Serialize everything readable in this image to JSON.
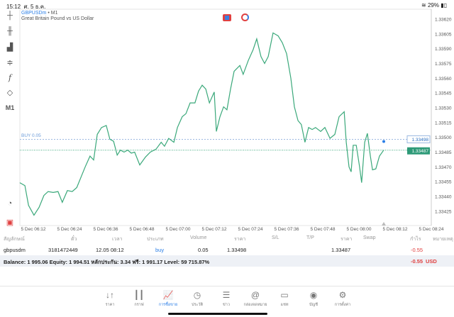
{
  "status": {
    "time": "15:12",
    "date": "ศ. 5 ธ.ค.",
    "battery": "29%"
  },
  "chart": {
    "symbol": "GBPUSDm",
    "timeframe": "M1",
    "separator": "•",
    "description": "Great Britain Pound vs US Dollar",
    "trade_label": "BUY 0.05",
    "ask_price": "1.33498",
    "bid_price": "1.33487",
    "line_color": "#3aa87a",
    "ask_color": "#2a7ee6"
  },
  "toolbar": {
    "timeframe_label": "M1"
  },
  "chart_data": {
    "type": "line",
    "title": "GBPUSDm • M1",
    "xlabel": "",
    "ylabel": "",
    "x_unit": "minutes since 5 Dec 06:12",
    "ylim": [
      1.33415,
      1.3363
    ],
    "y_ticks": [
      "1.33620",
      "1.33605",
      "1.33590",
      "1.33575",
      "1.33560",
      "1.33545",
      "1.33530",
      "1.33515",
      "1.33500",
      "1.33485",
      "1.33470",
      "1.33455",
      "1.33440",
      "1.33425"
    ],
    "x_ticks": [
      "5 Dec 06:12",
      "5 Dec 06:24",
      "5 Dec 06:36",
      "5 Dec 06:48",
      "5 Dec 07:00",
      "5 Dec 07:12",
      "5 Dec 07:24",
      "5 Dec 07:36",
      "5 Dec 07:48",
      "5 Dec 08:00",
      "5 Dec 08:12",
      "5 Dec 08:24"
    ],
    "series": [
      {
        "name": "Bid",
        "points": [
          [
            -4.5,
            1.33454
          ],
          [
            -2.8,
            1.33451
          ],
          [
            -1.6,
            1.33431
          ],
          [
            0.2,
            1.33421
          ],
          [
            1.9,
            1.33429
          ],
          [
            3.5,
            1.33441
          ],
          [
            4.9,
            1.33445
          ],
          [
            6.6,
            1.33444
          ],
          [
            8.2,
            1.33445
          ],
          [
            9.6,
            1.33434
          ],
          [
            11.3,
            1.33446
          ],
          [
            12.9,
            1.33445
          ],
          [
            14.4,
            1.33449
          ],
          [
            16,
            1.33461
          ],
          [
            17.2,
            1.3347
          ],
          [
            18.8,
            1.33481
          ],
          [
            20,
            1.33477
          ],
          [
            21.2,
            1.33503
          ],
          [
            22.6,
            1.3351
          ],
          [
            24.2,
            1.33512
          ],
          [
            25.4,
            1.33498
          ],
          [
            26.6,
            1.33496
          ],
          [
            27.8,
            1.33482
          ],
          [
            28.9,
            1.33487
          ],
          [
            30.1,
            1.33485
          ],
          [
            31.3,
            1.33487
          ],
          [
            32.5,
            1.33484
          ],
          [
            33.6,
            1.33485
          ],
          [
            35.3,
            1.33472
          ],
          [
            37.2,
            1.3348
          ],
          [
            38.8,
            1.33485
          ],
          [
            40.7,
            1.33488
          ],
          [
            42.4,
            1.33495
          ],
          [
            43.5,
            1.33491
          ],
          [
            44.9,
            1.33499
          ],
          [
            46.6,
            1.33495
          ],
          [
            47.8,
            1.3351
          ],
          [
            49.4,
            1.33521
          ],
          [
            50.6,
            1.33524
          ],
          [
            52,
            1.33535
          ],
          [
            53.6,
            1.33535
          ],
          [
            54.8,
            1.33547
          ],
          [
            56,
            1.33553
          ],
          [
            57.2,
            1.33549
          ],
          [
            58.4,
            1.33535
          ],
          [
            60,
            1.33546
          ],
          [
            60.7,
            1.33506
          ],
          [
            61.9,
            1.33521
          ],
          [
            63.1,
            1.33531
          ],
          [
            64.2,
            1.33528
          ],
          [
            65.4,
            1.33549
          ],
          [
            66.6,
            1.33567
          ],
          [
            68.5,
            1.33573
          ],
          [
            69.6,
            1.33564
          ],
          [
            71.3,
            1.33578
          ],
          [
            72.9,
            1.33589
          ],
          [
            74.1,
            1.336
          ],
          [
            75.5,
            1.33582
          ],
          [
            76.7,
            1.33575
          ],
          [
            77.9,
            1.33582
          ],
          [
            79.5,
            1.33606
          ],
          [
            81.2,
            1.33603
          ],
          [
            82.6,
            1.33596
          ],
          [
            84,
            1.33585
          ],
          [
            85.4,
            1.3356
          ],
          [
            86.6,
            1.33531
          ],
          [
            87.8,
            1.33517
          ],
          [
            88.9,
            1.33513
          ],
          [
            90.1,
            1.33495
          ],
          [
            91.3,
            1.3351
          ],
          [
            92.5,
            1.33508
          ],
          [
            93.6,
            1.3351
          ],
          [
            95.3,
            1.33506
          ],
          [
            96.7,
            1.3351
          ],
          [
            98.4,
            1.33499
          ],
          [
            100,
            1.33503
          ],
          [
            101.4,
            1.33521
          ],
          [
            103.1,
            1.33526
          ],
          [
            103.8,
            1.33495
          ],
          [
            104.7,
            1.3347
          ],
          [
            105.4,
            1.33465
          ],
          [
            106.1,
            1.33492
          ],
          [
            107.1,
            1.33492
          ],
          [
            108.2,
            1.3347
          ],
          [
            108.9,
            1.33454
          ],
          [
            109.9,
            1.33495
          ],
          [
            110.8,
            1.33504
          ],
          [
            111.8,
            1.33481
          ],
          [
            112.5,
            1.33467
          ],
          [
            113.6,
            1.33468
          ],
          [
            114.8,
            1.33481
          ],
          [
            116.2,
            1.33487
          ]
        ]
      }
    ],
    "hlines": [
      {
        "name": "Ask / BUY 0.05",
        "value": 1.33498
      },
      {
        "name": "Bid",
        "value": 1.33487
      }
    ],
    "grid": false
  },
  "table": {
    "headers": [
      "สัญลักษณ์",
      "ตั๋ว",
      "เวลา",
      "ประเภท",
      "Volume",
      "ราคา",
      "S/L",
      "T/P",
      "ราคา",
      "Swap",
      "กำไร",
      "หมายเหตุ"
    ],
    "rows": [
      {
        "symbol": "gbpusdm",
        "ticket": "3181472449",
        "time": "12.05 08:12",
        "type": "buy",
        "volume": "0.05",
        "open_price": "1.33498",
        "sl": "",
        "tp": "",
        "price": "1.33487",
        "swap": "",
        "profit": "-0.55",
        "comment": ""
      }
    ],
    "balance_line": "Balance: 1 995.06 Equity: 1 994.51 หลักประกัน: 3.34 ฟรี: 1 991.17 Level: 59 715.87%",
    "total_profit": "-0.55",
    "currency": "USD"
  },
  "nav": [
    {
      "label": "ราคา",
      "icon": "↓↑"
    },
    {
      "label": "กราฟ",
      "icon": "┃┃"
    },
    {
      "label": "การซื้อขาย",
      "icon": "📈"
    },
    {
      "label": "ประวัติ",
      "icon": "◷"
    },
    {
      "label": "ข่าว",
      "icon": "☰"
    },
    {
      "label": "กล่องจดหมาย",
      "icon": "@"
    },
    {
      "label": "แชท",
      "icon": "▭"
    },
    {
      "label": "บัญชี",
      "icon": "◉"
    },
    {
      "label": "การตั้งค่า",
      "icon": "⚙"
    }
  ]
}
